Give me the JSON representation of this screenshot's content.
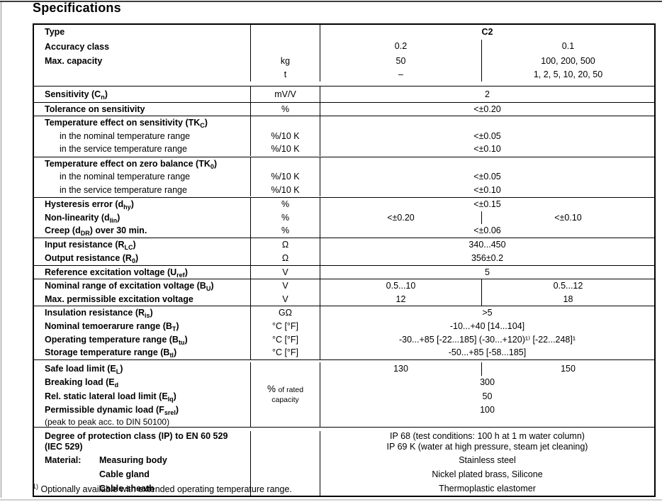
{
  "title": "Specifications",
  "footnote": {
    "marker": "1)",
    "text": " Optionally available with extended operating temperature range."
  },
  "table": {
    "header": {
      "type_label": "Type",
      "type_value": "C2",
      "accuracy_label": "Accuracy class",
      "accuracy_c2_02": "0.2",
      "accuracy_c2_01": "0.1",
      "capacity_label": "Max. capacity",
      "capacity_unit_kg": "kg",
      "capacity_unit_t": "t",
      "capacity_02_kg": "50",
      "capacity_02_t": "–",
      "capacity_01_kg": "100, 200, 500",
      "capacity_01_t": "1, 2, 5, 10, 20, 50"
    },
    "sensitivity": {
      "label": "Sensitivity (C{n})",
      "unit": "mV/V",
      "value": "2"
    },
    "tolerance": {
      "label": "Tolerance on sensitivity",
      "unit": "%",
      "value": "<±0.20"
    },
    "temp_sensitivity": {
      "label": "Temperature effect on sensitivity (TK{C})",
      "rows": [
        {
          "label": "in the nominal temperature range",
          "unit": "%/10 K",
          "value": "<±0.05"
        },
        {
          "label": "in the service temperature range",
          "unit": "%/10 K",
          "value": "<±0.10"
        }
      ]
    },
    "temp_zero": {
      "label": "Temperature effect on zero balance (TK{0})",
      "rows": [
        {
          "label": "in the nominal temperature range",
          "unit": "%/10 K",
          "value": "<±0.05"
        },
        {
          "label": "in the service temperature range",
          "unit": "%/10 K",
          "value": "<±0.10"
        }
      ]
    },
    "hysteresis": {
      "label": "Hysteresis error (d{hy})",
      "unit": "%",
      "value": "<±0.15"
    },
    "nonlinearity": {
      "label": "Non-linearity (d{lin})",
      "unit": "%",
      "value_02": "<±0.20",
      "value_01": "<±0.10"
    },
    "creep": {
      "label": "Creep (d{DR}) over 30 min.",
      "unit": "%",
      "value": "<±0.06"
    },
    "input_resistance": {
      "label": "Input resistance (R{LC})",
      "unit": "Ω",
      "value": "340...450"
    },
    "output_resistance": {
      "label": "Output resistance (R{0})",
      "unit": "Ω",
      "value": "356±0.2"
    },
    "reference_voltage": {
      "label": "Reference excitation voltage (U{ref})",
      "unit": "V",
      "value": "5"
    },
    "nominal_excitation": {
      "label": "Nominal range of excitation voltage (B{U})",
      "unit": "V",
      "value_02": "0.5...10",
      "value_01": "0.5...12"
    },
    "max_excitation": {
      "label": "Max. permissible excitation voltage",
      "unit": "V",
      "value_02": "12",
      "value_01": "18"
    },
    "insulation": {
      "label": "Insulation resistance (R{is})",
      "unit": "GΩ",
      "value": ">5"
    },
    "nominal_temp": {
      "label": "Nominal temoerarure range (B{T})",
      "unit": "°C [°F]",
      "value": "-10...+40 [14...104]"
    },
    "operating_temp": {
      "label": "Operating temperature range (B{tu})",
      "unit": "°C [°F]",
      "value": "-30...+85 [-22...185] (-30...+120)¹⁾ [-22...248]¹"
    },
    "storage_temp": {
      "label": "Storage temperature range (B{tl})",
      "unit": "°C [°F]",
      "value": "-50...+85 [-58...185]"
    },
    "load_group": {
      "unit_big": "%",
      "unit_small": "of rated capacity",
      "row_safe": {
        "label": "Safe load limit (E{L})",
        "value_02": "130",
        "value_01": "150"
      },
      "row_breaking": {
        "label": "Breaking load (E{d}",
        "value": "300"
      },
      "row_lateral": {
        "label": "Rel. static lateral load limit (E{lq})",
        "value": "50"
      },
      "row_dynamic": {
        "label": "Permissible dynamic load (F{srel})",
        "value": "100"
      },
      "note": "(peak to peak acc. to DIN 50100)"
    },
    "protection": {
      "label_line1": "Degree of protection class (IP) to EN 60 529",
      "label_line2": "(IEC 529)",
      "value_line1": "IP 68 (test conditions: 100 h at 1 m water column)",
      "value_line2": "IP 69 K (water at high pressure, steam jet cleaning)"
    },
    "material": {
      "label": "Material:",
      "rows": [
        {
          "label": "Measuring body",
          "value": "Stainless steel"
        },
        {
          "label": "Cable gland",
          "value": "Nickel plated brass, Silicone"
        },
        {
          "label": "Cable sheath",
          "value": "Thermoplastic elastomer"
        }
      ]
    }
  }
}
